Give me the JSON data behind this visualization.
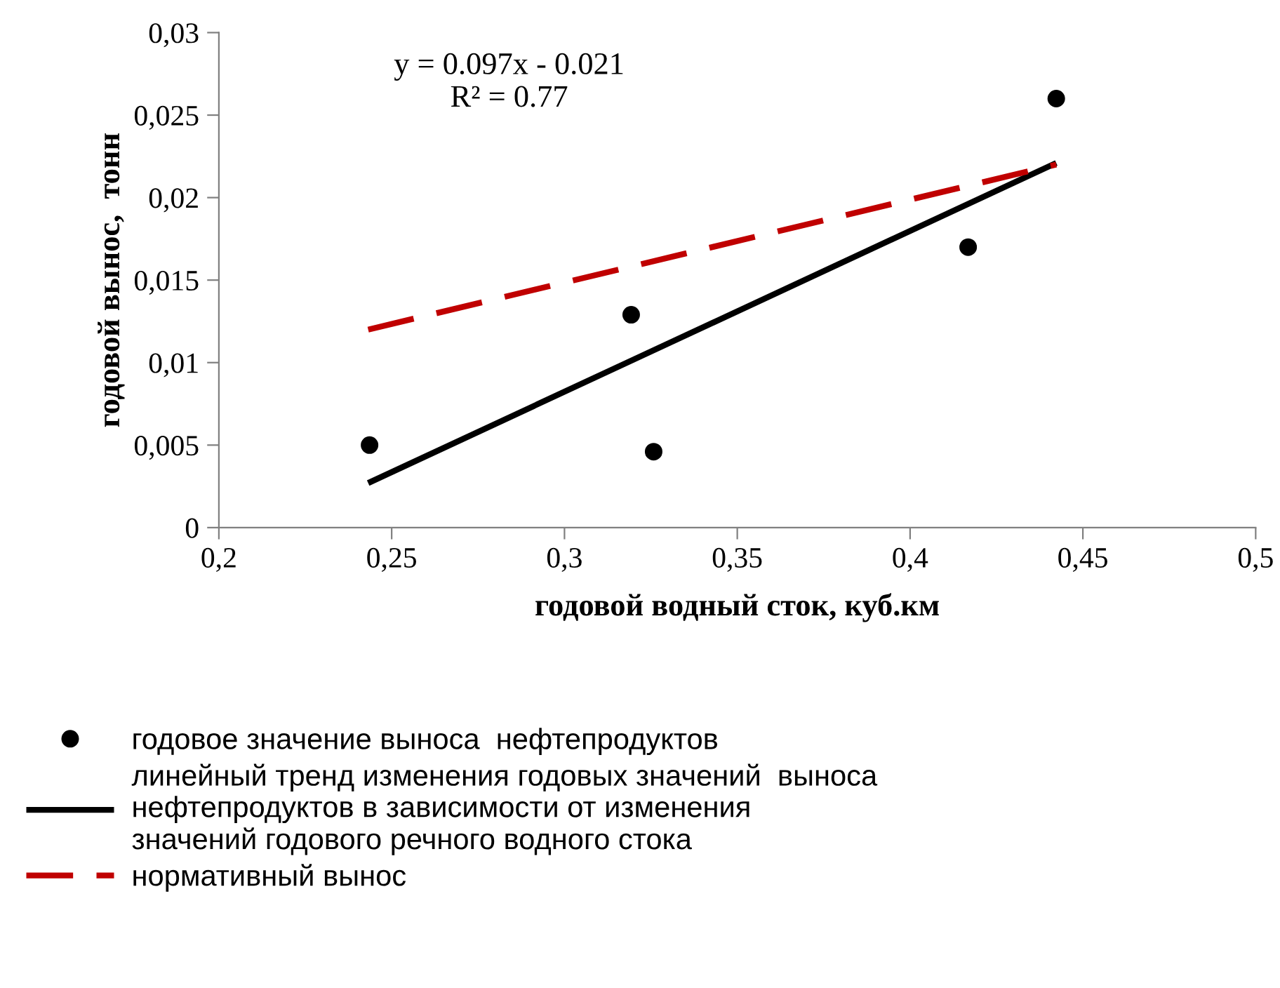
{
  "chart_data": {
    "type": "scatter",
    "xlabel": "годовой водный сток, куб.км",
    "ylabel": "годовой вынос,  тонн",
    "xlim": [
      0.2,
      0.5
    ],
    "xticks": [
      {
        "value": 0.2,
        "label": "0,2"
      },
      {
        "value": 0.25,
        "label": "0,25"
      },
      {
        "value": 0.3,
        "label": "0,3"
      },
      {
        "value": 0.35,
        "label": "0,35"
      },
      {
        "value": 0.4,
        "label": "0,4"
      },
      {
        "value": 0.45,
        "label": "0,45"
      },
      {
        "value": 0.5,
        "label": "0,5"
      }
    ],
    "ylim": [
      0,
      0.03
    ],
    "yticks": [
      0,
      {
        "value": 0.005,
        "label": "0,005"
      },
      {
        "value": 0.01,
        "label": "0,01"
      },
      {
        "value": 0.015,
        "label": "0,015"
      },
      {
        "value": 0.02,
        "label": "0,02"
      },
      {
        "value": 0.025,
        "label": "0,025"
      },
      {
        "value": 0.03,
        "label": "0,03"
      }
    ],
    "grid": false,
    "legend": "bottom",
    "marker": "circle",
    "annotations": [
      "y = 0.097x - 0.021\nR² = 0.77"
    ],
    "series": [
      {
        "name": "годовое значение выноса  нефтепродуктов",
        "color": "#000000",
        "x": [
          0.2436,
          0.3193,
          0.3258,
          0.4168,
          0.4423
        ],
        "values": [
          0.005,
          0.0129,
          0.0046,
          0.017,
          0.026
        ]
      },
      {
        "name": "линейный тренд изменения годовых значений  выноса\nнефтепродуктов в зависимости от изменения\nзначений годового речного водного стока",
        "type": "line",
        "line_style": "solid",
        "marker": "none",
        "color": "#000000",
        "x": [
          0.2432,
          0.4423
        ],
        "values": [
          0.0027,
          0.0221
        ]
      },
      {
        "name": "нормативный вынос",
        "type": "line",
        "line_style": "dashed",
        "marker": "none",
        "color": "#c00000",
        "x": [
          0.2432,
          0.4423
        ],
        "values": [
          0.012,
          0.022
        ]
      }
    ]
  }
}
